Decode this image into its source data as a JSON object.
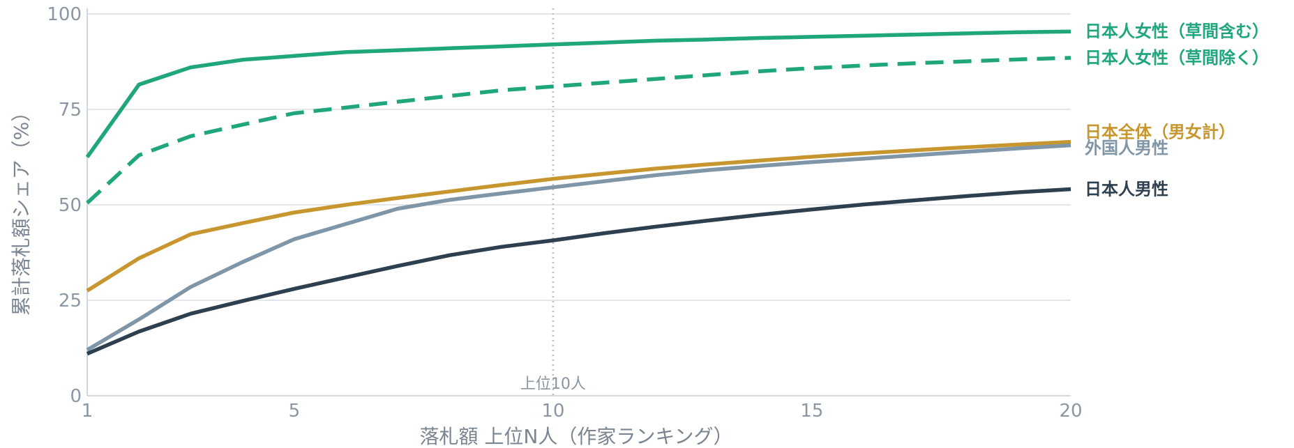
{
  "chart_data": {
    "type": "line",
    "xlabel": "落札額 上位N人（作家ランキング）",
    "ylabel": "累計落札額シェア（%）",
    "xlim": [
      1,
      20
    ],
    "ylim": [
      0,
      100
    ],
    "xticks": [
      "1",
      "5",
      "10",
      "15",
      "20"
    ],
    "yticks": [
      "0",
      "25",
      "50",
      "75",
      "100"
    ],
    "grid": "horizontal",
    "legend_placement": "right, direct labels at line ends",
    "reference_line": {
      "x": 10,
      "label": "上位10人",
      "style": "dotted"
    },
    "x": [
      1,
      2,
      3,
      4,
      5,
      6,
      7,
      8,
      9,
      10,
      11,
      12,
      13,
      14,
      15,
      16,
      17,
      18,
      19,
      20
    ],
    "series": [
      {
        "name": "日本人女性（草間含む）",
        "color": "#1fa67a",
        "dash": "solid",
        "values": [
          62.5,
          81.5,
          86,
          88,
          89,
          90,
          90.5,
          91,
          91.5,
          92,
          92.5,
          93,
          93.3,
          93.7,
          94,
          94.3,
          94.6,
          94.9,
          95.2,
          95.4
        ]
      },
      {
        "name": "日本人女性（草間除く）",
        "color": "#1fa67a",
        "dash": "dashed",
        "values": [
          50.5,
          63,
          68,
          71,
          74,
          75.5,
          77,
          78.5,
          80,
          81,
          82,
          83,
          84,
          85,
          85.8,
          86.5,
          87.1,
          87.6,
          88.1,
          88.5
        ]
      },
      {
        "name": "日本全体（男女計）",
        "color": "#c8962e",
        "dash": "solid",
        "values": [
          27.5,
          36,
          42.3,
          45.2,
          48,
          50,
          51.8,
          53.5,
          55.2,
          56.8,
          58.2,
          59.5,
          60.6,
          61.6,
          62.6,
          63.5,
          64.3,
          65.1,
          65.8,
          66.5
        ]
      },
      {
        "name": "外国人男性",
        "color": "#7f95a8",
        "dash": "solid",
        "values": [
          12,
          20,
          28.5,
          35,
          41,
          45,
          49,
          51.3,
          53,
          54.6,
          56.2,
          57.8,
          59.1,
          60.2,
          61.2,
          62.1,
          63,
          63.9,
          64.8,
          65.6
        ]
      },
      {
        "name": "日本人男性",
        "color": "#2e3f50",
        "dash": "solid",
        "values": [
          11,
          16.8,
          21.5,
          24.8,
          28,
          31,
          34,
          36.8,
          39,
          40.7,
          42.6,
          44.3,
          45.9,
          47.4,
          48.8,
          50.1,
          51.2,
          52.3,
          53.3,
          54.1
        ]
      }
    ]
  }
}
